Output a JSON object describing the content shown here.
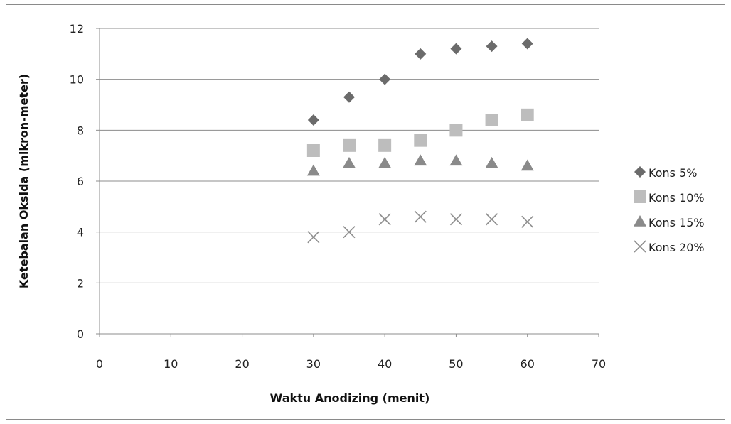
{
  "chart_data": {
    "type": "scatter",
    "title": "",
    "xlabel": "Waktu Anodizing (menit)",
    "ylabel": "Ketebalan Oksida (mikron-meter)",
    "xlim": [
      0,
      70
    ],
    "ylim": [
      0,
      12
    ],
    "x_ticks": [
      "0",
      "10",
      "20",
      "30",
      "40",
      "50",
      "60",
      "70"
    ],
    "y_ticks": [
      "0",
      "2",
      "4",
      "6",
      "8",
      "10",
      "12"
    ],
    "grid": "horizontal",
    "legend_position": "right",
    "x": [
      30,
      35,
      40,
      45,
      50,
      55,
      60
    ],
    "series": [
      {
        "name": "Kons 5%",
        "marker": "diamond",
        "color": "#6b6b6b",
        "values": [
          8.4,
          9.3,
          10.0,
          11.0,
          11.2,
          11.3,
          11.4
        ]
      },
      {
        "name": "Kons 10%",
        "marker": "square",
        "color": "#bdbdbd",
        "values": [
          7.2,
          7.4,
          7.4,
          7.6,
          8.0,
          8.4,
          8.6
        ]
      },
      {
        "name": "Kons 15%",
        "marker": "triangle",
        "color": "#8a8a8a",
        "values": [
          6.4,
          6.7,
          6.7,
          6.8,
          6.8,
          6.7,
          6.6
        ]
      },
      {
        "name": "Kons 20%",
        "marker": "x",
        "color": "#8f8f8f",
        "values": [
          3.8,
          4.0,
          4.5,
          4.6,
          4.5,
          4.5,
          4.4
        ]
      }
    ]
  }
}
